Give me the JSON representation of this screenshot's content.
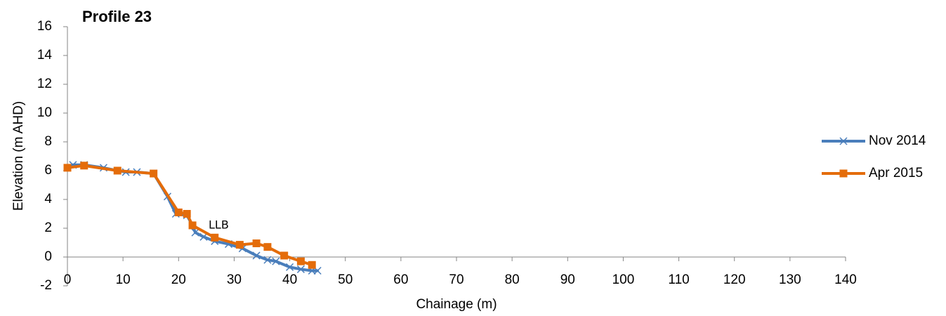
{
  "chart_data": {
    "type": "line",
    "title": "Profile 23",
    "xlabel": "Chainage (m)",
    "ylabel": "Elevation (m AHD)",
    "xlim": [
      0,
      140
    ],
    "xticks": [
      0,
      10,
      20,
      30,
      40,
      50,
      60,
      70,
      80,
      90,
      100,
      110,
      120,
      130,
      140
    ],
    "ylim": [
      -2,
      16
    ],
    "yticks": [
      -2,
      0,
      2,
      4,
      6,
      8,
      10,
      12,
      14,
      16
    ],
    "grid": false,
    "legend": "right",
    "annotations": [
      {
        "text": "LLB"
      }
    ],
    "series": [
      {
        "name": "Nov 2014",
        "color": "#4a7ebb",
        "marker": "x",
        "x": [
          0,
          1,
          3,
          6.5,
          9,
          10.5,
          12.5,
          15.5,
          18,
          19.5,
          21.5,
          22.5,
          23,
          24.5,
          26.5,
          29,
          31.5,
          34,
          36,
          37.5,
          40,
          42,
          44,
          45
        ],
        "values": [
          6.2,
          6.4,
          6.4,
          6.2,
          6.0,
          5.9,
          5.9,
          5.8,
          4.2,
          3.0,
          2.9,
          2.2,
          1.7,
          1.4,
          1.1,
          0.9,
          0.6,
          0.1,
          -0.2,
          -0.3,
          -0.7,
          -0.85,
          -0.95,
          -0.95
        ]
      },
      {
        "name": "Apr 2015",
        "color": "#e46c0a",
        "marker": "square",
        "x": [
          0,
          3,
          9,
          15.5,
          20,
          21.5,
          22.5,
          26.5,
          31,
          34,
          36,
          39,
          42,
          44
        ],
        "values": [
          6.2,
          6.35,
          6.0,
          5.8,
          3.1,
          3.0,
          2.2,
          1.35,
          0.85,
          0.95,
          0.7,
          0.1,
          -0.3,
          -0.55
        ]
      }
    ]
  }
}
